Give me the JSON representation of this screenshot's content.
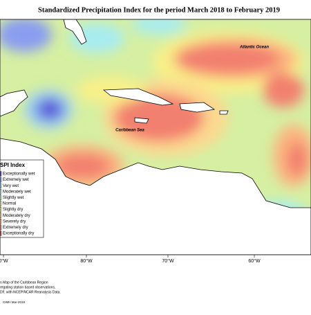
{
  "title": "Standardized Precipitation Index for the period March 2018 to February 2019",
  "map": {
    "labels": [
      "Atlantic Ocean",
      "Caribbean Sea"
    ],
    "longitude_labels": [
      "0°W",
      "80°W",
      "70°W",
      "60°W"
    ]
  },
  "legend": {
    "title": "SPI Index",
    "items": [
      {
        "label": "Exceptionally wet",
        "color": "#5a5ad8"
      },
      {
        "label": "Extremely wet",
        "color": "#8a9cf0"
      },
      {
        "label": "Very wet",
        "color": "#9ed0f4"
      },
      {
        "label": "Moderately wet",
        "color": "#a8ecf0"
      },
      {
        "label": "Slightly wet",
        "color": "#c8f0c0"
      },
      {
        "label": "Normal",
        "color": "#e0f4a8"
      },
      {
        "label": "Slightly dry",
        "color": "#f8f088"
      },
      {
        "label": "Moderately dry",
        "color": "#fcd890"
      },
      {
        "label": "Severely dry",
        "color": "#fcb480"
      },
      {
        "label": "Extremely dry",
        "color": "#f88878"
      },
      {
        "label": "Exceptionally dry",
        "color": "#e05050"
      }
    ]
  },
  "footer": {
    "lines": [
      "n Map of the Caribbean Region",
      "regating station based observations,",
      "DF, with NCEP/NCAR Reanalysis Data."
    ],
    "credit": "CIMH Mar-2019"
  }
}
